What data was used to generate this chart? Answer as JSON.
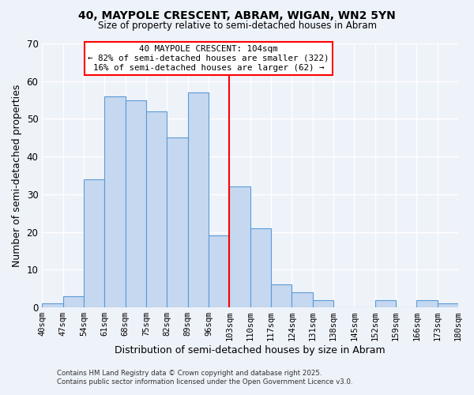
{
  "title": "40, MAYPOLE CRESCENT, ABRAM, WIGAN, WN2 5YN",
  "subtitle": "Size of property relative to semi-detached houses in Abram",
  "xlabel": "Distribution of semi-detached houses by size in Abram",
  "ylabel": "Number of semi-detached properties",
  "bin_labels": [
    "40sqm",
    "47sqm",
    "54sqm",
    "61sqm",
    "68sqm",
    "75sqm",
    "82sqm",
    "89sqm",
    "96sqm",
    "103sqm",
    "110sqm",
    "117sqm",
    "124sqm",
    "131sqm",
    "138sqm",
    "145sqm",
    "152sqm",
    "159sqm",
    "166sqm",
    "173sqm",
    "180sqm"
  ],
  "bin_edges": [
    40,
    47,
    54,
    61,
    68,
    75,
    82,
    89,
    96,
    103,
    110,
    117,
    124,
    131,
    138,
    145,
    152,
    159,
    166,
    173,
    180
  ],
  "bar_heights": [
    1,
    3,
    34,
    56,
    55,
    52,
    45,
    57,
    19,
    32,
    21,
    6,
    4,
    2,
    0,
    0,
    2,
    0,
    2,
    1
  ],
  "bar_color": "#c5d8f0",
  "bar_edge_color": "#5b9bd5",
  "property_line_x": 103,
  "property_line_color": "red",
  "annotation_title": "40 MAYPOLE CRESCENT: 104sqm",
  "annotation_line1": "← 82% of semi-detached houses are smaller (322)",
  "annotation_line2": "16% of semi-detached houses are larger (62) →",
  "annotation_box_color": "white",
  "annotation_box_edge": "red",
  "ylim": [
    0,
    70
  ],
  "yticks": [
    0,
    10,
    20,
    30,
    40,
    50,
    60,
    70
  ],
  "footnote1": "Contains HM Land Registry data © Crown copyright and database right 2025.",
  "footnote2": "Contains public sector information licensed under the Open Government Licence v3.0.",
  "background_color": "#eef2f9",
  "grid_color": "#ffffff"
}
